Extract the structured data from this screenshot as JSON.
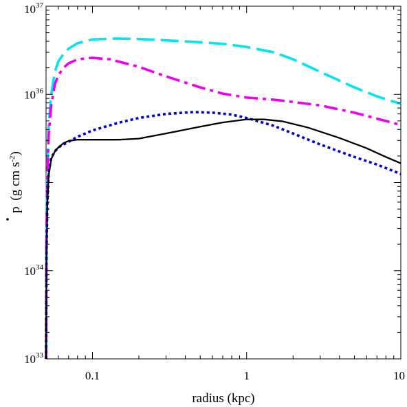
{
  "chart_data": {
    "type": "line",
    "title": "",
    "xlabel": "radius (kpc)",
    "ylabel": {
      "symbol": "p",
      "units_open": "(g cm s",
      "units_exp": "-2",
      "units_close": ")"
    },
    "x_scale": "log",
    "y_scale": "log",
    "xlim": [
      0.05,
      10
    ],
    "ylim": [
      1e+33,
      1e+37
    ],
    "grid": false,
    "legend": "none",
    "x_ticks": [
      {
        "value": 0.1,
        "label": "0.1"
      },
      {
        "value": 1,
        "label": "1"
      },
      {
        "value": 10,
        "label": "10"
      }
    ],
    "y_ticks": [
      {
        "value": 1e+33,
        "base": "10",
        "exp": "33"
      },
      {
        "value": 1e+34,
        "base": "10",
        "exp": "34"
      },
      {
        "value": 1e+36,
        "base": "10",
        "exp": "36"
      },
      {
        "value": 1e+37,
        "base": "10",
        "exp": "37"
      }
    ],
    "series": [
      {
        "color": "#00e5ee",
        "style": "long-dash",
        "points": [
          [
            0.05,
            1e+33
          ],
          [
            0.0503,
            3e+34
          ],
          [
            0.051,
            1.5e+35
          ],
          [
            0.052,
            4.5e+35
          ],
          [
            0.054,
            1e+36
          ],
          [
            0.057,
            1.8e+36
          ],
          [
            0.06,
            2.35e+36
          ],
          [
            0.065,
            2.9e+36
          ],
          [
            0.07,
            3.3e+36
          ],
          [
            0.08,
            3.8e+36
          ],
          [
            0.1,
            4.2e+36
          ],
          [
            0.14,
            4.3e+36
          ],
          [
            0.2,
            4.25e+36
          ],
          [
            0.3,
            4.1e+36
          ],
          [
            0.5,
            3.9e+36
          ],
          [
            0.7,
            3.75e+36
          ],
          [
            1.0,
            3.45e+36
          ],
          [
            1.5,
            3e+36
          ],
          [
            2.0,
            2.5e+36
          ],
          [
            3.0,
            1.8e+36
          ],
          [
            5.0,
            1.2e+36
          ],
          [
            7.0,
            9.5e+35
          ],
          [
            10.0,
            7.8e+35
          ]
        ]
      },
      {
        "color": "#ee00ee",
        "style": "dash-dot",
        "points": [
          [
            0.05,
            1e+33
          ],
          [
            0.0503,
            2.5e+34
          ],
          [
            0.051,
            1.2e+35
          ],
          [
            0.052,
            3.5e+35
          ],
          [
            0.054,
            7.5e+35
          ],
          [
            0.057,
            1.3e+36
          ],
          [
            0.06,
            1.65e+36
          ],
          [
            0.065,
            2e+36
          ],
          [
            0.07,
            2.25e+36
          ],
          [
            0.08,
            2.5e+36
          ],
          [
            0.1,
            2.6e+36
          ],
          [
            0.13,
            2.5e+36
          ],
          [
            0.2,
            2.05e+36
          ],
          [
            0.3,
            1.6e+36
          ],
          [
            0.5,
            1.2e+36
          ],
          [
            0.7,
            1.02e+36
          ],
          [
            1.0,
            9.2e+35
          ],
          [
            1.5,
            8.7e+35
          ],
          [
            2.0,
            8.2e+35
          ],
          [
            3.0,
            7.5e+35
          ],
          [
            5.0,
            6.2e+35
          ],
          [
            7.0,
            5.3e+35
          ],
          [
            10.0,
            4.5e+35
          ]
        ]
      },
      {
        "color": "#0000cc",
        "style": "dotted",
        "points": [
          [
            0.05,
            1e+33
          ],
          [
            0.0503,
            1.5e+34
          ],
          [
            0.051,
            6e+34
          ],
          [
            0.052,
            1.3e+35
          ],
          [
            0.054,
            1.9e+35
          ],
          [
            0.057,
            2.25e+35
          ],
          [
            0.06,
            2.5e+35
          ],
          [
            0.07,
            2.9e+35
          ],
          [
            0.08,
            3.3e+35
          ],
          [
            0.1,
            3.9e+35
          ],
          [
            0.15,
            4.8e+35
          ],
          [
            0.2,
            5.4e+35
          ],
          [
            0.3,
            6e+35
          ],
          [
            0.45,
            6.3e+35
          ],
          [
            0.6,
            6.2e+35
          ],
          [
            0.8,
            5.9e+35
          ],
          [
            1.0,
            5.4e+35
          ],
          [
            1.5,
            4.4e+35
          ],
          [
            2.0,
            3.6e+35
          ],
          [
            3.0,
            2.7e+35
          ],
          [
            5.0,
            1.95e+35
          ],
          [
            7.0,
            1.6e+35
          ],
          [
            10.0,
            1.25e+35
          ]
        ]
      },
      {
        "color": "#000000",
        "style": "solid",
        "points": [
          [
            0.05,
            1e+33
          ],
          [
            0.0503,
            1.5e+34
          ],
          [
            0.051,
            6e+34
          ],
          [
            0.052,
            1.2e+35
          ],
          [
            0.054,
            1.85e+35
          ],
          [
            0.057,
            2.25e+35
          ],
          [
            0.06,
            2.5e+35
          ],
          [
            0.065,
            2.8e+35
          ],
          [
            0.07,
            2.97e+35
          ],
          [
            0.08,
            3.06e+35
          ],
          [
            0.1,
            3.06e+35
          ],
          [
            0.15,
            3.06e+35
          ],
          [
            0.2,
            3.15e+35
          ],
          [
            0.3,
            3.6e+35
          ],
          [
            0.5,
            4.3e+35
          ],
          [
            0.7,
            4.8e+35
          ],
          [
            1.0,
            5.2e+35
          ],
          [
            1.3,
            5.2e+35
          ],
          [
            1.7,
            4.95e+35
          ],
          [
            2.5,
            4.2e+35
          ],
          [
            4.0,
            3.2e+35
          ],
          [
            6.0,
            2.45e+35
          ],
          [
            8.0,
            1.95e+35
          ],
          [
            10.0,
            1.65e+35
          ]
        ]
      }
    ]
  }
}
